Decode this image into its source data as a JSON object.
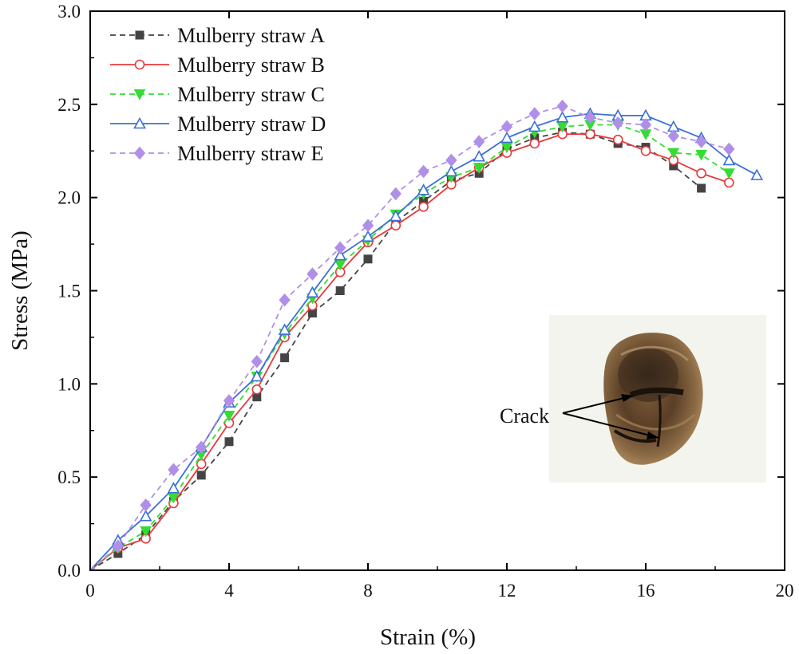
{
  "chart_data": {
    "type": "line",
    "xlabel": "Strain (%)",
    "ylabel": "Stress (MPa)",
    "xlim": [
      0,
      20
    ],
    "ylim": [
      0,
      3.0
    ],
    "xticks": [
      0,
      4,
      8,
      12,
      16,
      20
    ],
    "xtick_labels": [
      "0",
      "4",
      "8",
      "12",
      "16",
      "20"
    ],
    "yticks": [
      0,
      0.5,
      1.0,
      1.5,
      2.0,
      2.5,
      3.0
    ],
    "ytick_labels": [
      "0.0",
      "0.5",
      "1.0",
      "1.5",
      "2.0",
      "2.5",
      "3.0"
    ],
    "grid": false,
    "legend_position": "top-left",
    "series": [
      {
        "name": "Mulberry straw A",
        "color": "#444444",
        "line": "dashed",
        "marker": "square-filled",
        "x": [
          0,
          0.8,
          1.6,
          2.4,
          3.2,
          4.0,
          4.8,
          5.6,
          6.4,
          7.2,
          8.0,
          8.8,
          9.6,
          10.4,
          11.2,
          12.0,
          12.8,
          13.6,
          14.4,
          15.2,
          16.0,
          16.8,
          17.6
        ],
        "y": [
          0,
          0.09,
          0.19,
          0.37,
          0.51,
          0.69,
          0.93,
          1.14,
          1.38,
          1.5,
          1.67,
          1.87,
          1.98,
          2.09,
          2.13,
          2.26,
          2.32,
          2.35,
          2.34,
          2.29,
          2.27,
          2.17,
          2.05
        ]
      },
      {
        "name": "Mulberry straw B",
        "color": "#e8383b",
        "line": "solid",
        "marker": "circle-open",
        "x": [
          0,
          0.8,
          1.6,
          2.4,
          3.2,
          4.0,
          4.8,
          5.6,
          6.4,
          7.2,
          8.0,
          8.8,
          9.6,
          10.4,
          11.2,
          12.0,
          12.8,
          13.6,
          14.4,
          15.2,
          16.0,
          16.8,
          17.6,
          18.4
        ],
        "y": [
          0,
          0.12,
          0.17,
          0.36,
          0.57,
          0.79,
          0.97,
          1.25,
          1.42,
          1.6,
          1.76,
          1.85,
          1.95,
          2.07,
          2.16,
          2.24,
          2.29,
          2.34,
          2.34,
          2.31,
          2.25,
          2.2,
          2.13,
          2.08
        ]
      },
      {
        "name": "Mulberry straw C",
        "color": "#33dd33",
        "line": "dashed",
        "marker": "triangle-down-filled",
        "x": [
          0,
          0.8,
          1.6,
          2.4,
          3.2,
          4.0,
          4.8,
          5.6,
          6.4,
          7.2,
          8.0,
          8.8,
          9.6,
          10.4,
          11.2,
          12.0,
          12.8,
          13.6,
          14.4,
          15.2,
          16.0,
          16.8,
          17.6,
          18.4
        ],
        "y": [
          0,
          0.12,
          0.21,
          0.39,
          0.62,
          0.83,
          1.04,
          1.27,
          1.46,
          1.64,
          1.77,
          1.91,
          2.02,
          2.11,
          2.16,
          2.27,
          2.35,
          2.38,
          2.39,
          2.39,
          2.34,
          2.24,
          2.23,
          2.13
        ]
      },
      {
        "name": "Mulberry straw D",
        "color": "#3b6fd6",
        "line": "solid",
        "marker": "triangle-up-open",
        "x": [
          0,
          0.8,
          1.6,
          2.4,
          3.2,
          4.0,
          4.8,
          5.6,
          6.4,
          7.2,
          8.0,
          8.8,
          9.6,
          10.4,
          11.2,
          12.0,
          12.8,
          13.6,
          14.4,
          15.2,
          16.0,
          16.8,
          17.6,
          18.4,
          19.2
        ],
        "y": [
          0,
          0.16,
          0.29,
          0.44,
          0.66,
          0.9,
          1.04,
          1.29,
          1.49,
          1.69,
          1.79,
          1.9,
          2.04,
          2.14,
          2.22,
          2.32,
          2.38,
          2.43,
          2.45,
          2.44,
          2.44,
          2.38,
          2.32,
          2.2,
          2.12
        ]
      },
      {
        "name": "Mulberry straw E",
        "color": "#b08fe8",
        "line": "dashed",
        "marker": "diamond-filled",
        "x": [
          0,
          0.8,
          1.6,
          2.4,
          3.2,
          4.0,
          4.8,
          5.6,
          6.4,
          7.2,
          8.0,
          8.8,
          9.6,
          10.4,
          11.2,
          12.0,
          12.8,
          13.6,
          14.4,
          15.2,
          16.0,
          16.8,
          17.6,
          18.4
        ],
        "y": [
          0,
          0.13,
          0.35,
          0.54,
          0.66,
          0.91,
          1.12,
          1.45,
          1.59,
          1.73,
          1.85,
          2.02,
          2.14,
          2.2,
          2.3,
          2.38,
          2.45,
          2.49,
          2.43,
          2.4,
          2.39,
          2.33,
          2.3,
          2.26
        ]
      }
    ],
    "annotations": [
      {
        "text": "Crack",
        "arrow_count": 2
      }
    ]
  }
}
